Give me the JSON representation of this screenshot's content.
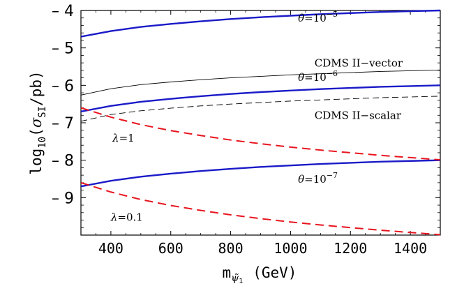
{
  "chart_data": {
    "type": "line",
    "title": "",
    "xlabel": "m",
    "xlabel_sub": "ψ̃",
    "xlabel_subsub": "1",
    "xlabel_unit": "(GeV)",
    "ylabel_prefix": "log",
    "ylabel_sub": "10",
    "ylabel_open": "(",
    "ylabel_sigma": "σ",
    "ylabel_sigma_sub": "SI",
    "ylabel_rest": "/pb)",
    "xlim": [
      300,
      1500
    ],
    "ylim": [
      -10,
      -4
    ],
    "xticks": [
      400,
      600,
      800,
      1000,
      1200,
      1400
    ],
    "xtick_labels": [
      "400",
      "600",
      "800",
      "1000",
      "1200",
      "1400"
    ],
    "yticks": [
      -4,
      -5,
      -6,
      -7,
      -8,
      -9
    ],
    "ytick_labels": [
      "– 4",
      "– 5",
      "– 6",
      "– 7",
      "– 8",
      "– 9"
    ],
    "grid": false,
    "series": [
      {
        "name": "θ=10^-5",
        "style": "solid-blue",
        "color": "#1a1ac8",
        "x": [
          300,
          400,
          500,
          600,
          700,
          800,
          900,
          1000,
          1100,
          1200,
          1300,
          1400,
          1500
        ],
        "y": [
          -4.7,
          -4.55,
          -4.44,
          -4.36,
          -4.29,
          -4.23,
          -4.18,
          -4.14,
          -4.1,
          -4.07,
          -4.04,
          -4.02,
          -4.0
        ]
      },
      {
        "name": "θ=10^-6",
        "style": "solid-blue",
        "color": "#1a1ac8",
        "x": [
          300,
          400,
          500,
          600,
          700,
          800,
          900,
          1000,
          1100,
          1200,
          1300,
          1400,
          1500
        ],
        "y": [
          -6.7,
          -6.55,
          -6.44,
          -6.36,
          -6.29,
          -6.23,
          -6.18,
          -6.14,
          -6.1,
          -6.07,
          -6.04,
          -6.02,
          -6.0
        ]
      },
      {
        "name": "θ=10^-7",
        "style": "solid-blue",
        "color": "#1a1ac8",
        "x": [
          300,
          400,
          500,
          600,
          700,
          800,
          900,
          1000,
          1100,
          1200,
          1300,
          1400,
          1500
        ],
        "y": [
          -8.7,
          -8.55,
          -8.44,
          -8.36,
          -8.29,
          -8.23,
          -8.18,
          -8.14,
          -8.1,
          -8.07,
          -8.04,
          -8.02,
          -8.0
        ]
      },
      {
        "name": "CDMS II−vector",
        "style": "solid-black-thin",
        "color": "#000000",
        "x": [
          300,
          400,
          500,
          600,
          700,
          800,
          900,
          1000,
          1100,
          1200,
          1300,
          1400,
          1500
        ],
        "y": [
          -6.26,
          -6.09,
          -5.98,
          -5.91,
          -5.85,
          -5.8,
          -5.76,
          -5.72,
          -5.69,
          -5.66,
          -5.63,
          -5.61,
          -5.59
        ]
      },
      {
        "name": "CDMS II−scalar",
        "style": "dashed-black-thin",
        "color": "#000000",
        "x": [
          300,
          400,
          500,
          600,
          700,
          800,
          900,
          1000,
          1100,
          1200,
          1300,
          1400,
          1500
        ],
        "y": [
          -6.96,
          -6.78,
          -6.68,
          -6.61,
          -6.55,
          -6.5,
          -6.46,
          -6.42,
          -6.39,
          -6.36,
          -6.33,
          -6.31,
          -6.29
        ]
      },
      {
        "name": "λ=1",
        "style": "dashed-red",
        "color": "#e8141e",
        "x": [
          300,
          400,
          500,
          600,
          700,
          800,
          900,
          1000,
          1100,
          1200,
          1300,
          1400,
          1500
        ],
        "y": [
          -6.6,
          -6.85,
          -7.05,
          -7.21,
          -7.34,
          -7.46,
          -7.56,
          -7.65,
          -7.73,
          -7.8,
          -7.87,
          -7.93,
          -7.99
        ]
      },
      {
        "name": "λ=0.1",
        "style": "dashed-red",
        "color": "#e8141e",
        "x": [
          300,
          400,
          500,
          600,
          700,
          800,
          900,
          1000,
          1100,
          1200,
          1300,
          1400,
          1500
        ],
        "y": [
          -8.6,
          -8.85,
          -9.05,
          -9.21,
          -9.34,
          -9.46,
          -9.56,
          -9.65,
          -9.73,
          -9.8,
          -9.87,
          -9.93,
          -9.99
        ]
      }
    ],
    "annotations": [
      {
        "id": "theta5",
        "prefix": "θ",
        "mid": "=10",
        "sup": "−5",
        "x": 1025,
        "y": -4.3
      },
      {
        "id": "vector",
        "text": "CDMS II−vector",
        "x": 1080,
        "y": -5.5
      },
      {
        "id": "theta6",
        "prefix": "θ",
        "mid": "=10",
        "sup": "−6",
        "x": 1025,
        "y": -5.88
      },
      {
        "id": "scalar",
        "text": "CDMS II−scalar",
        "x": 1080,
        "y": -6.9
      },
      {
        "id": "lambda1",
        "prefix": "λ",
        "mid": "=1",
        "sup": "",
        "x": 405,
        "y": -7.5
      },
      {
        "id": "theta7",
        "prefix": "θ",
        "mid": "=10",
        "sup": "−7",
        "x": 1025,
        "y": -8.6
      },
      {
        "id": "lambda01",
        "prefix": "λ",
        "mid": "=0.1",
        "sup": "",
        "x": 400,
        "y": -9.62
      }
    ]
  }
}
